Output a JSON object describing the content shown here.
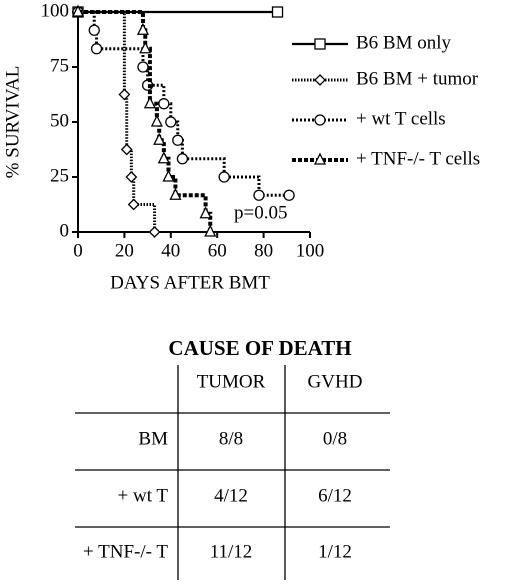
{
  "chart_data": {
    "type": "step",
    "y_label": "% SURVIVAL",
    "x_label": "DAYS AFTER BMT",
    "xlim": [
      0,
      100
    ],
    "xticks": [
      0,
      20,
      40,
      60,
      80,
      100
    ],
    "ylim": [
      0,
      100
    ],
    "yticks": [
      0,
      25,
      50,
      75,
      100
    ],
    "annotation": "p=0.05",
    "series": [
      {
        "name": "B6 BM only",
        "color": "#000000",
        "marker": "square",
        "dash": "solid",
        "x": [
          0,
          86
        ],
        "values": [
          100,
          100
        ]
      },
      {
        "name": "B6 BM + tumor",
        "color": "#000000",
        "marker": "diamond",
        "dash": "dense-dotted",
        "x": [
          0,
          20,
          21,
          23,
          24,
          33
        ],
        "values": [
          100,
          62.5,
          37.5,
          25,
          12.5,
          0
        ]
      },
      {
        "name": "+ wt T cells",
        "color": "#000000",
        "marker": "circle",
        "dash": "dotted",
        "x": [
          0,
          7,
          8,
          28,
          30,
          37,
          40,
          43,
          45,
          63,
          78,
          91
        ],
        "values": [
          100,
          91.7,
          83.3,
          75,
          66.7,
          58.3,
          50,
          41.7,
          33.3,
          25,
          16.7,
          16.7
        ]
      },
      {
        "name": "+ TNF-/- T cells",
        "color": "#000000",
        "marker": "triangle",
        "dash": "dashed",
        "x": [
          0,
          28,
          29,
          31,
          34,
          35,
          37,
          39,
          42,
          55,
          57
        ],
        "values": [
          100,
          91.7,
          83.3,
          58.3,
          50,
          41.7,
          33.3,
          25,
          16.7,
          8.3,
          0
        ]
      }
    ]
  },
  "table": {
    "title": "CAUSE OF DEATH",
    "columns": [
      "TUMOR",
      "GVHD"
    ],
    "rows": [
      {
        "label": "BM",
        "values": [
          "8/8",
          "0/8"
        ]
      },
      {
        "label": "+ wt T",
        "values": [
          "4/12",
          "6/12"
        ]
      },
      {
        "label": "+ TNF-/- T",
        "values": [
          "11/12",
          "1/12"
        ]
      }
    ]
  }
}
